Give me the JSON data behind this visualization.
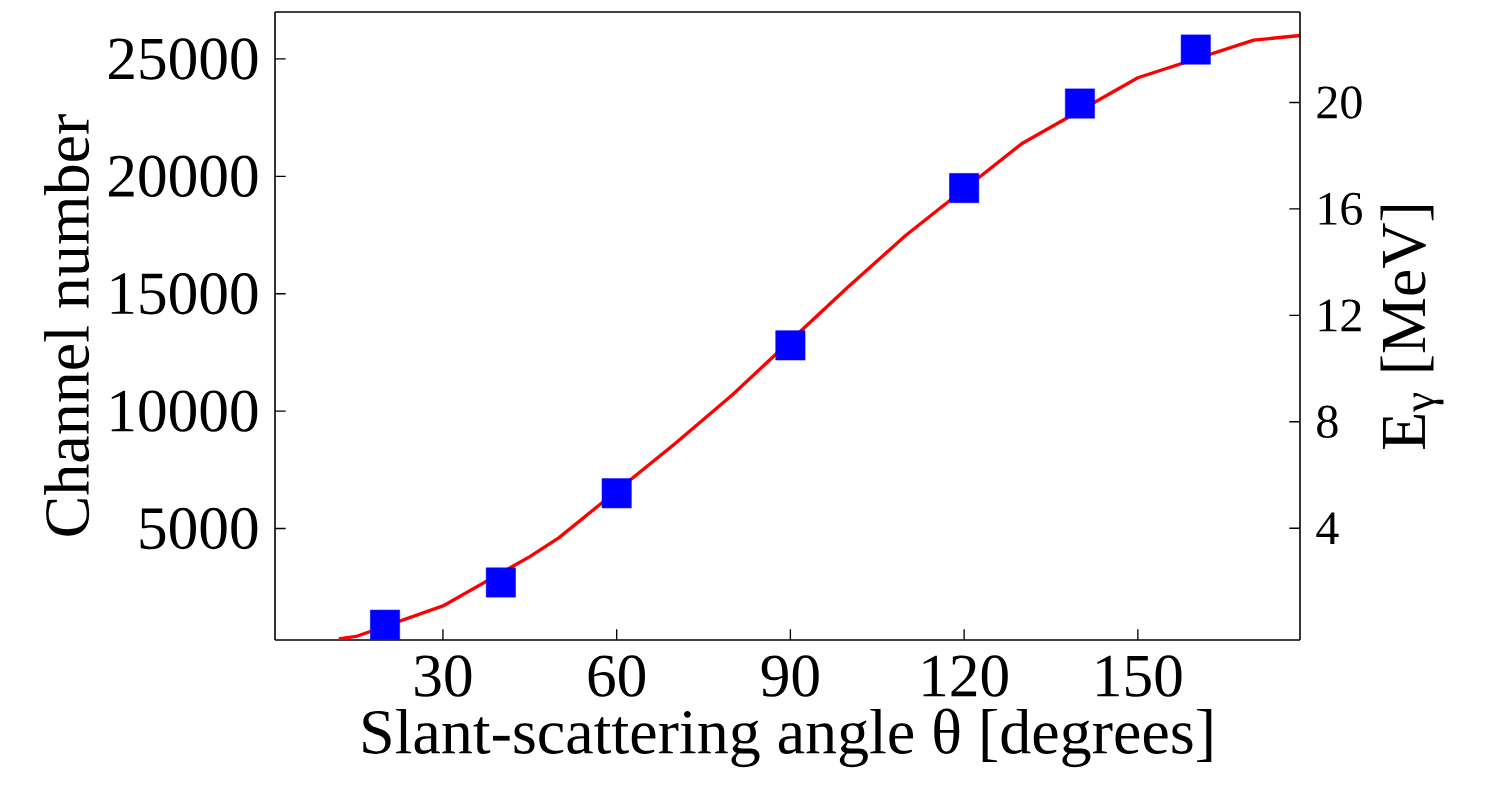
{
  "chart_data": {
    "type": "scatter",
    "xlabel": "Slant-scattering angle θ [degrees]",
    "ylabel": "Channel number",
    "y2label": "E$_{γ}$ [MeV]",
    "series": [
      {
        "type": "line",
        "color": "#ff0000",
        "marker": "none",
        "x": [
          12,
          15,
          30,
          45,
          50,
          70,
          80,
          100,
          110,
          130,
          150,
          170,
          178
        ],
        "values": [
          300,
          400,
          1700,
          3800,
          4600,
          8600,
          10700,
          15300,
          17500,
          21400,
          24200,
          25800,
          26000
        ]
      },
      {
        "color": "#0000ff",
        "marker": "square",
        "x": [
          20,
          40,
          60,
          90,
          120,
          140,
          160
        ],
        "values": [
          900,
          2700,
          6500,
          12800,
          19500,
          23100,
          25400
        ]
      }
    ],
    "xlim": [
      1,
      178
    ],
    "xticks": [
      30,
      60,
      90,
      120,
      150
    ],
    "ylim": [
      250,
      27000
    ],
    "yticks": [
      5000,
      10000,
      15000,
      20000,
      25000
    ],
    "y2lim": [
      -0.2,
      23.4
    ],
    "y2ticks": [
      4,
      8,
      12,
      16,
      20
    ],
    "grid": false
  }
}
